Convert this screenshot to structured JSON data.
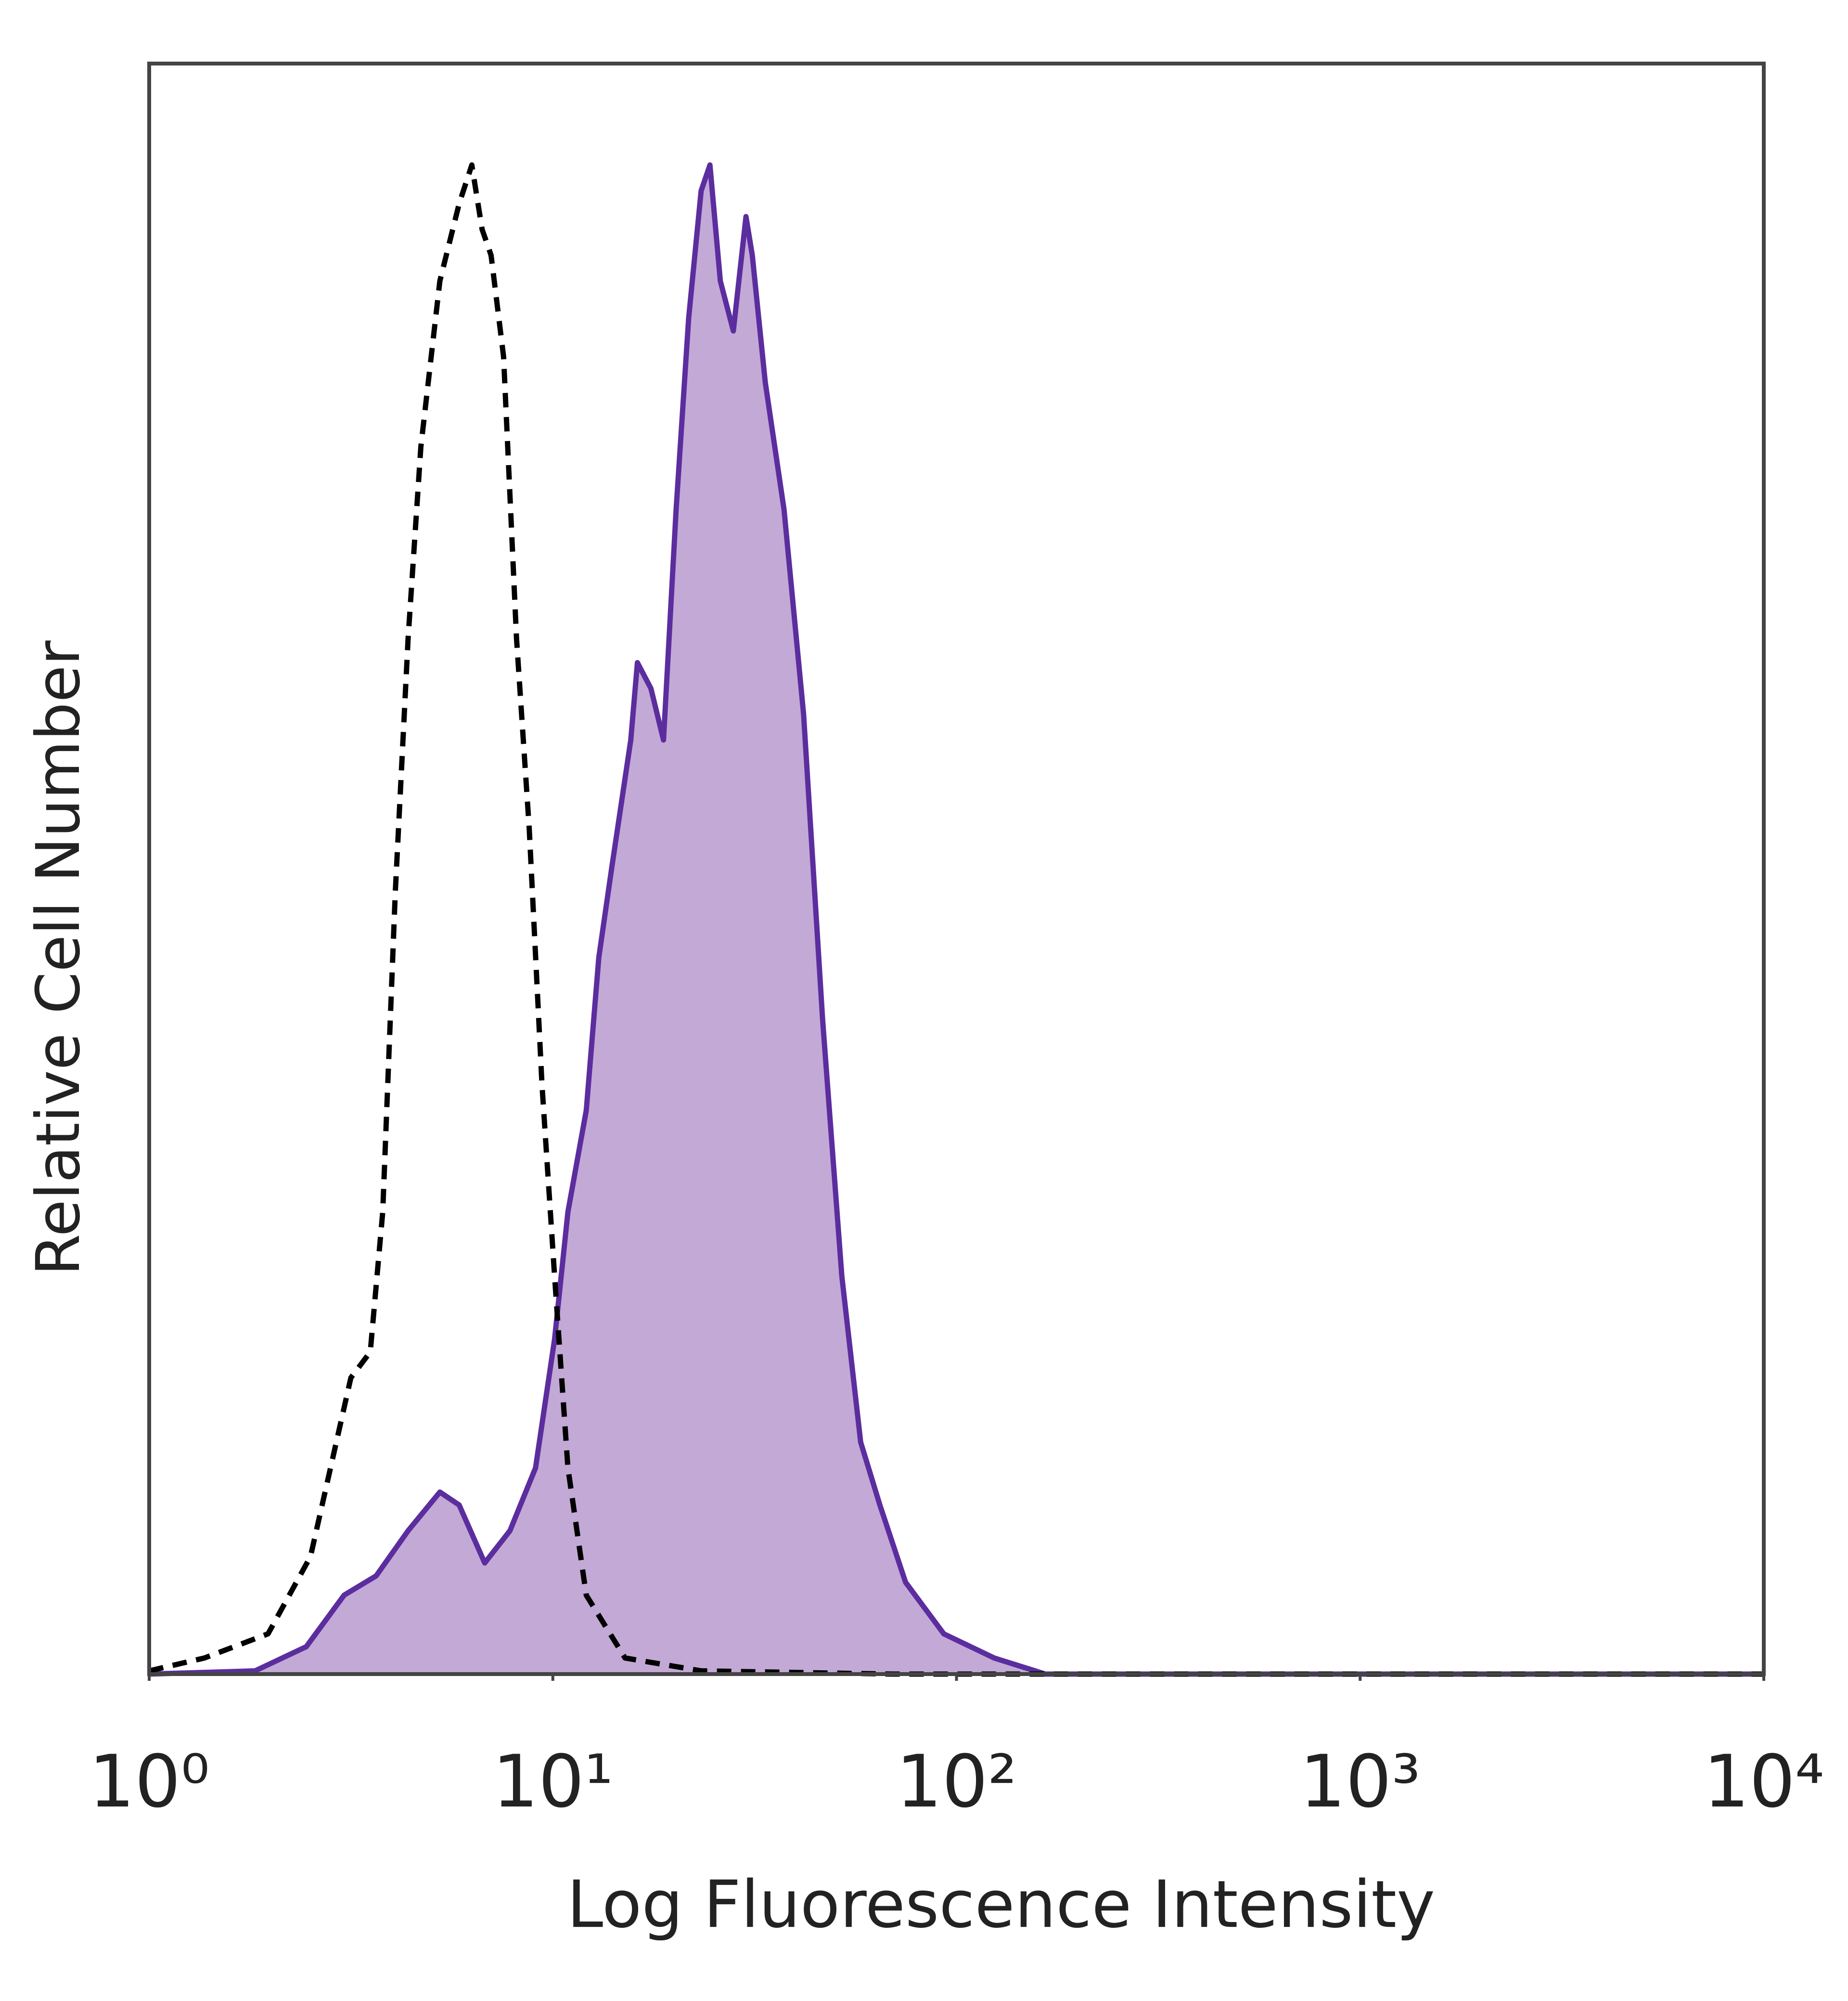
{
  "chart_data": {
    "type": "histogram-overlay",
    "xlabel": "Log Fluorescence Intensity",
    "ylabel": "Relative Cell Number",
    "xscale": "log",
    "xlim": [
      1,
      10000
    ],
    "xticks": [
      {
        "value": 1,
        "label": "10⁰"
      },
      {
        "value": 10,
        "label": "10¹"
      },
      {
        "value": 100,
        "label": "10²"
      },
      {
        "value": 1000,
        "label": "10³"
      },
      {
        "value": 10000,
        "label": "10⁴"
      }
    ],
    "ylim": [
      0,
      100
    ],
    "grid": false,
    "series": [
      {
        "color": "#5b2d9e",
        "fill": "#c3a9d6",
        "line_style": "solid",
        "x": [
          1,
          1.83,
          2.45,
          3.04,
          3.65,
          4.38,
          5.25,
          5.86,
          6.78,
          7.83,
          9.06,
          10.1,
          10.9,
          12.1,
          13.0,
          14.0,
          15.6,
          16.2,
          17.5,
          18.8,
          20.2,
          21.7,
          23.3,
          24.5,
          26.0,
          28.0,
          30.1,
          31.2,
          33.6,
          37.4,
          41.8,
          46.6,
          52.0,
          57.9,
          64.6,
          74.8,
          93.0,
          124,
          166,
          10000
        ],
        "values": [
          0,
          0.2,
          1.7,
          4.9,
          6.1,
          8.9,
          11.3,
          10.5,
          6.9,
          8.9,
          12.8,
          20.8,
          28.7,
          35,
          44.5,
          50.1,
          58,
          62.8,
          61.2,
          58,
          72.3,
          84.2,
          92.1,
          93.7,
          86.5,
          83.4,
          90.5,
          88.1,
          80.2,
          72.3,
          59.6,
          40.6,
          24.7,
          14.4,
          10.5,
          5.7,
          2.5,
          1,
          0,
          0
        ]
      },
      {
        "color": "#000000",
        "line_style": "dashed",
        "x": [
          1,
          1.37,
          1.97,
          2.51,
          3.16,
          3.53,
          3.79,
          4.07,
          4.38,
          4.71,
          5.25,
          5.86,
          6.3,
          6.68,
          7.03,
          7.55,
          8.13,
          8.74,
          9.4,
          10.1,
          10.9,
          12.1,
          15.1,
          23.3,
          69.5,
          10000
        ],
        "values": [
          0.2,
          1,
          2.5,
          7.3,
          18.4,
          20,
          28.7,
          48.5,
          64.3,
          76.2,
          86.5,
          91.3,
          93.7,
          89.7,
          88.1,
          81.8,
          64.3,
          52.5,
          36.6,
          24.7,
          12.8,
          4.9,
          1,
          0.2,
          0,
          0
        ]
      }
    ]
  }
}
